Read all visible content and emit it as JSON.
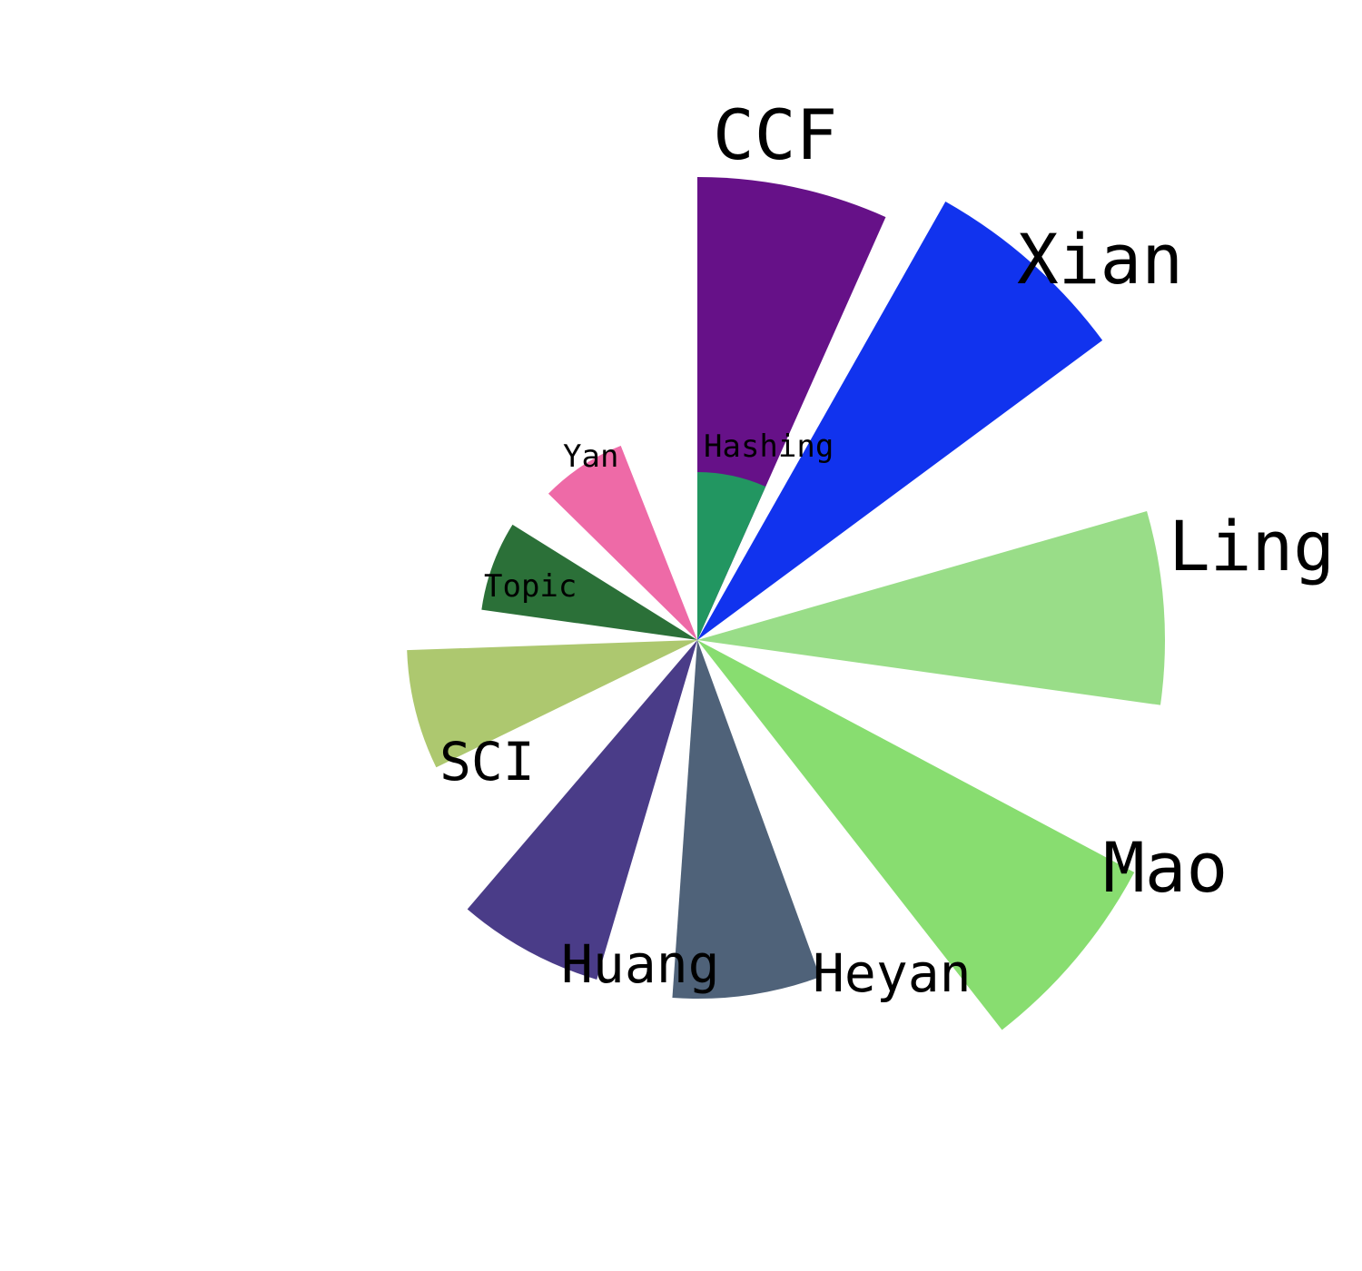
{
  "chart_data": {
    "type": "nightingale-rose",
    "title": "",
    "categories": [
      "CCF",
      "Xian",
      "Ling",
      "Mao",
      "Heyan",
      "Huang",
      "SCI",
      "Topic",
      "Yan",
      "Hashing"
    ],
    "values": [
      510,
      555,
      515,
      545,
      395,
      390,
      320,
      240,
      230,
      185
    ],
    "colors": [
      "#661188",
      "#1133ee",
      "#99dd88",
      "#88dd70",
      "#4f6279",
      "#4a3c88",
      "#adc86f",
      "#2b7038",
      "#ee6aa7",
      "#229661"
    ],
    "label_sizes": [
      "large",
      "large",
      "large",
      "large",
      "medium",
      "medium",
      "medium",
      "small",
      "small",
      "small"
    ],
    "start_direction": "top",
    "direction": "clockwise",
    "legend": "none",
    "grid": false
  }
}
